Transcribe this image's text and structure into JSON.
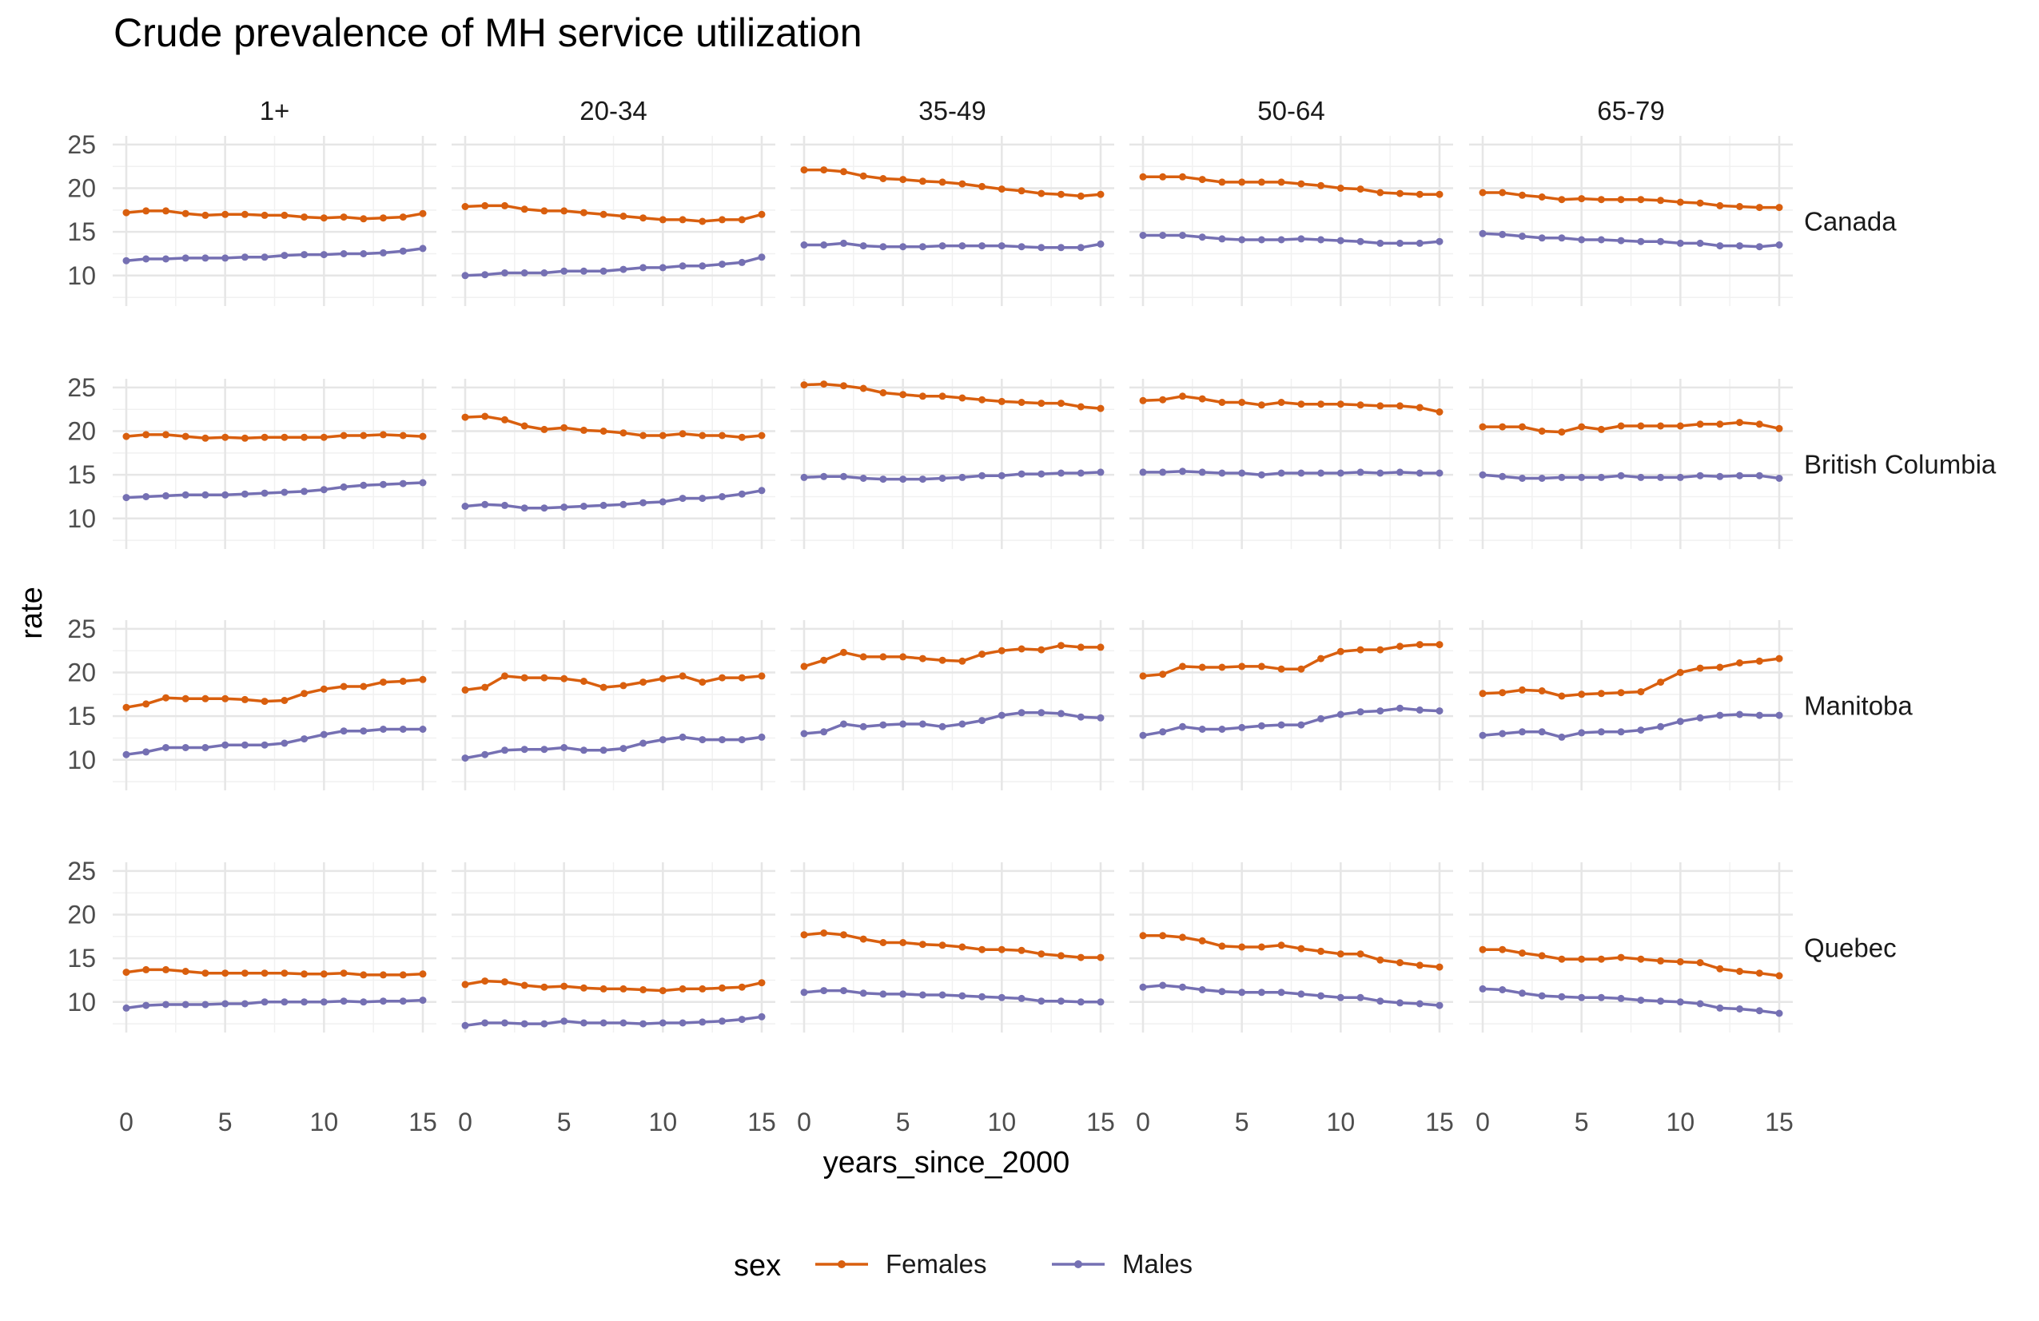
{
  "chart_data": {
    "type": "line",
    "title": "Crude prevalence of MH service utilization",
    "xlabel": "years_since_2000",
    "ylabel": "rate",
    "xlim": [
      0,
      15
    ],
    "ylim": [
      6.5,
      26
    ],
    "x_ticks": [
      "0",
      "5",
      "10",
      "15"
    ],
    "y_ticks": [
      "10",
      "15",
      "20",
      "25"
    ],
    "grid": true,
    "legend": {
      "title": "sex",
      "position": "bottom",
      "entries": [
        "Females",
        "Males"
      ]
    },
    "x": [
      0,
      1,
      2,
      3,
      4,
      5,
      6,
      7,
      8,
      9,
      10,
      11,
      12,
      13,
      14,
      15
    ],
    "colors": {
      "Females": "#d95f0e",
      "Males": "#7570b3"
    },
    "columns": [
      "1+",
      "20-34",
      "35-49",
      "50-64",
      "65-79"
    ],
    "rows": [
      "Canada",
      "British Columbia",
      "Manitoba",
      "Quebec"
    ],
    "panels": [
      {
        "row": "Canada",
        "col": "1+",
        "series": [
          {
            "name": "Females",
            "values": [
              17.2,
              17.4,
              17.4,
              17.1,
              16.9,
              17.0,
              17.0,
              16.9,
              16.9,
              16.7,
              16.6,
              16.7,
              16.5,
              16.6,
              16.7,
              17.1
            ]
          },
          {
            "name": "Males",
            "values": [
              11.7,
              11.9,
              11.9,
              12.0,
              12.0,
              12.0,
              12.1,
              12.1,
              12.3,
              12.4,
              12.4,
              12.5,
              12.5,
              12.6,
              12.8,
              13.1
            ]
          }
        ]
      },
      {
        "row": "Canada",
        "col": "20-34",
        "series": [
          {
            "name": "Females",
            "values": [
              17.9,
              18.0,
              18.0,
              17.6,
              17.4,
              17.4,
              17.2,
              17.0,
              16.8,
              16.6,
              16.4,
              16.4,
              16.2,
              16.4,
              16.4,
              17.0
            ]
          },
          {
            "name": "Males",
            "values": [
              10.0,
              10.1,
              10.3,
              10.3,
              10.3,
              10.5,
              10.5,
              10.5,
              10.7,
              10.9,
              10.9,
              11.1,
              11.1,
              11.3,
              11.5,
              12.1
            ]
          }
        ]
      },
      {
        "row": "Canada",
        "col": "35-49",
        "series": [
          {
            "name": "Females",
            "values": [
              22.1,
              22.1,
              21.9,
              21.4,
              21.1,
              21.0,
              20.8,
              20.7,
              20.5,
              20.2,
              19.9,
              19.7,
              19.4,
              19.3,
              19.1,
              19.3
            ]
          },
          {
            "name": "Males",
            "values": [
              13.5,
              13.5,
              13.7,
              13.4,
              13.3,
              13.3,
              13.3,
              13.4,
              13.4,
              13.4,
              13.4,
              13.3,
              13.2,
              13.2,
              13.2,
              13.6
            ]
          }
        ]
      },
      {
        "row": "Canada",
        "col": "50-64",
        "series": [
          {
            "name": "Females",
            "values": [
              21.3,
              21.3,
              21.3,
              21.0,
              20.7,
              20.7,
              20.7,
              20.7,
              20.5,
              20.3,
              20.0,
              19.9,
              19.5,
              19.4,
              19.3,
              19.3
            ]
          },
          {
            "name": "Males",
            "values": [
              14.6,
              14.6,
              14.6,
              14.4,
              14.2,
              14.1,
              14.1,
              14.1,
              14.2,
              14.1,
              14.0,
              13.9,
              13.7,
              13.7,
              13.7,
              13.9
            ]
          }
        ]
      },
      {
        "row": "Canada",
        "col": "65-79",
        "series": [
          {
            "name": "Females",
            "values": [
              19.5,
              19.5,
              19.2,
              19.0,
              18.7,
              18.8,
              18.7,
              18.7,
              18.7,
              18.6,
              18.4,
              18.3,
              18.0,
              17.9,
              17.8,
              17.8
            ]
          },
          {
            "name": "Males",
            "values": [
              14.8,
              14.7,
              14.5,
              14.3,
              14.3,
              14.1,
              14.1,
              14.0,
              13.9,
              13.9,
              13.7,
              13.7,
              13.4,
              13.4,
              13.3,
              13.5
            ]
          }
        ]
      },
      {
        "row": "British Columbia",
        "col": "1+",
        "series": [
          {
            "name": "Females",
            "values": [
              19.4,
              19.6,
              19.6,
              19.4,
              19.2,
              19.3,
              19.2,
              19.3,
              19.3,
              19.3,
              19.3,
              19.5,
              19.5,
              19.6,
              19.5,
              19.4
            ]
          },
          {
            "name": "Males",
            "values": [
              12.4,
              12.5,
              12.6,
              12.7,
              12.7,
              12.7,
              12.8,
              12.9,
              13.0,
              13.1,
              13.3,
              13.6,
              13.8,
              13.9,
              14.0,
              14.1
            ]
          }
        ]
      },
      {
        "row": "British Columbia",
        "col": "20-34",
        "series": [
          {
            "name": "Females",
            "values": [
              21.6,
              21.7,
              21.3,
              20.6,
              20.2,
              20.4,
              20.1,
              20.0,
              19.8,
              19.5,
              19.5,
              19.7,
              19.5,
              19.5,
              19.3,
              19.5
            ]
          },
          {
            "name": "Males",
            "values": [
              11.4,
              11.6,
              11.5,
              11.2,
              11.2,
              11.3,
              11.4,
              11.5,
              11.6,
              11.8,
              11.9,
              12.3,
              12.3,
              12.5,
              12.8,
              13.2
            ]
          }
        ]
      },
      {
        "row": "British Columbia",
        "col": "35-49",
        "series": [
          {
            "name": "Females",
            "values": [
              25.3,
              25.4,
              25.2,
              24.9,
              24.4,
              24.2,
              24.0,
              24.0,
              23.8,
              23.6,
              23.4,
              23.3,
              23.2,
              23.2,
              22.8,
              22.6
            ]
          },
          {
            "name": "Males",
            "values": [
              14.7,
              14.8,
              14.8,
              14.6,
              14.5,
              14.5,
              14.5,
              14.6,
              14.7,
              14.9,
              14.9,
              15.1,
              15.1,
              15.2,
              15.2,
              15.3
            ]
          }
        ]
      },
      {
        "row": "British Columbia",
        "col": "50-64",
        "series": [
          {
            "name": "Females",
            "values": [
              23.5,
              23.6,
              24.0,
              23.7,
              23.3,
              23.3,
              23.0,
              23.3,
              23.1,
              23.1,
              23.1,
              23.0,
              22.9,
              22.9,
              22.7,
              22.2
            ]
          },
          {
            "name": "Males",
            "values": [
              15.3,
              15.3,
              15.4,
              15.3,
              15.2,
              15.2,
              15.0,
              15.2,
              15.2,
              15.2,
              15.2,
              15.3,
              15.2,
              15.3,
              15.2,
              15.2
            ]
          }
        ]
      },
      {
        "row": "British Columbia",
        "col": "65-79",
        "series": [
          {
            "name": "Females",
            "values": [
              20.5,
              20.5,
              20.5,
              20.0,
              19.9,
              20.5,
              20.2,
              20.6,
              20.6,
              20.6,
              20.6,
              20.8,
              20.8,
              21.0,
              20.8,
              20.3
            ]
          },
          {
            "name": "Males",
            "values": [
              15.0,
              14.8,
              14.6,
              14.6,
              14.7,
              14.7,
              14.7,
              14.9,
              14.7,
              14.7,
              14.7,
              14.9,
              14.8,
              14.9,
              14.9,
              14.6
            ]
          }
        ]
      },
      {
        "row": "Manitoba",
        "col": "1+",
        "series": [
          {
            "name": "Females",
            "values": [
              16.0,
              16.4,
              17.1,
              17.0,
              17.0,
              17.0,
              16.9,
              16.7,
              16.8,
              17.6,
              18.1,
              18.4,
              18.4,
              18.9,
              19.0,
              19.2
            ]
          },
          {
            "name": "Males",
            "values": [
              10.6,
              10.9,
              11.4,
              11.4,
              11.4,
              11.7,
              11.7,
              11.7,
              11.9,
              12.4,
              12.9,
              13.3,
              13.3,
              13.5,
              13.5,
              13.5
            ]
          }
        ]
      },
      {
        "row": "Manitoba",
        "col": "20-34",
        "series": [
          {
            "name": "Females",
            "values": [
              18.0,
              18.3,
              19.6,
              19.4,
              19.4,
              19.3,
              19.0,
              18.3,
              18.5,
              18.9,
              19.3,
              19.6,
              18.9,
              19.4,
              19.4,
              19.6
            ]
          },
          {
            "name": "Males",
            "values": [
              10.2,
              10.6,
              11.1,
              11.2,
              11.2,
              11.4,
              11.1,
              11.1,
              11.3,
              11.9,
              12.3,
              12.6,
              12.3,
              12.3,
              12.3,
              12.6
            ]
          }
        ]
      },
      {
        "row": "Manitoba",
        "col": "35-49",
        "series": [
          {
            "name": "Females",
            "values": [
              20.7,
              21.4,
              22.3,
              21.8,
              21.8,
              21.8,
              21.6,
              21.4,
              21.3,
              22.1,
              22.5,
              22.7,
              22.6,
              23.1,
              22.9,
              22.9
            ]
          },
          {
            "name": "Males",
            "values": [
              13.0,
              13.2,
              14.1,
              13.8,
              14.0,
              14.1,
              14.1,
              13.8,
              14.1,
              14.5,
              15.1,
              15.4,
              15.4,
              15.3,
              14.9,
              14.8
            ]
          }
        ]
      },
      {
        "row": "Manitoba",
        "col": "50-64",
        "series": [
          {
            "name": "Females",
            "values": [
              19.6,
              19.8,
              20.7,
              20.6,
              20.6,
              20.7,
              20.7,
              20.4,
              20.4,
              21.6,
              22.4,
              22.6,
              22.6,
              23.0,
              23.2,
              23.2
            ]
          },
          {
            "name": "Males",
            "values": [
              12.8,
              13.2,
              13.8,
              13.5,
              13.5,
              13.7,
              13.9,
              14.0,
              14.0,
              14.7,
              15.2,
              15.5,
              15.6,
              15.9,
              15.7,
              15.6
            ]
          }
        ]
      },
      {
        "row": "Manitoba",
        "col": "65-79",
        "series": [
          {
            "name": "Females",
            "values": [
              17.6,
              17.7,
              18.0,
              17.9,
              17.3,
              17.5,
              17.6,
              17.7,
              17.8,
              18.9,
              20.0,
              20.5,
              20.6,
              21.1,
              21.3,
              21.6
            ]
          },
          {
            "name": "Males",
            "values": [
              12.8,
              13.0,
              13.2,
              13.2,
              12.6,
              13.1,
              13.2,
              13.2,
              13.4,
              13.8,
              14.4,
              14.8,
              15.1,
              15.2,
              15.1,
              15.1
            ]
          }
        ]
      },
      {
        "row": "Quebec",
        "col": "1+",
        "series": [
          {
            "name": "Females",
            "values": [
              13.4,
              13.7,
              13.7,
              13.5,
              13.3,
              13.3,
              13.3,
              13.3,
              13.3,
              13.2,
              13.2,
              13.3,
              13.1,
              13.1,
              13.1,
              13.2
            ]
          },
          {
            "name": "Males",
            "values": [
              9.3,
              9.6,
              9.7,
              9.7,
              9.7,
              9.8,
              9.8,
              10.0,
              10.0,
              10.0,
              10.0,
              10.1,
              10.0,
              10.1,
              10.1,
              10.2
            ]
          }
        ]
      },
      {
        "row": "Quebec",
        "col": "20-34",
        "series": [
          {
            "name": "Females",
            "values": [
              12.0,
              12.4,
              12.3,
              11.9,
              11.7,
              11.8,
              11.6,
              11.5,
              11.5,
              11.4,
              11.3,
              11.5,
              11.5,
              11.6,
              11.7,
              12.2
            ]
          },
          {
            "name": "Males",
            "values": [
              7.3,
              7.6,
              7.6,
              7.5,
              7.5,
              7.8,
              7.6,
              7.6,
              7.6,
              7.5,
              7.6,
              7.6,
              7.7,
              7.8,
              8.0,
              8.3
            ]
          }
        ]
      },
      {
        "row": "Quebec",
        "col": "35-49",
        "series": [
          {
            "name": "Females",
            "values": [
              17.7,
              17.9,
              17.7,
              17.2,
              16.8,
              16.8,
              16.6,
              16.5,
              16.3,
              16.0,
              16.0,
              15.9,
              15.5,
              15.3,
              15.1,
              15.1
            ]
          },
          {
            "name": "Males",
            "values": [
              11.1,
              11.3,
              11.3,
              11.0,
              10.9,
              10.9,
              10.8,
              10.8,
              10.7,
              10.6,
              10.5,
              10.4,
              10.1,
              10.1,
              10.0,
              10.0
            ]
          }
        ]
      },
      {
        "row": "Quebec",
        "col": "50-64",
        "series": [
          {
            "name": "Females",
            "values": [
              17.6,
              17.6,
              17.4,
              17.0,
              16.4,
              16.3,
              16.3,
              16.5,
              16.1,
              15.8,
              15.5,
              15.5,
              14.8,
              14.5,
              14.2,
              14.0
            ]
          },
          {
            "name": "Males",
            "values": [
              11.7,
              11.9,
              11.7,
              11.4,
              11.2,
              11.1,
              11.1,
              11.1,
              10.9,
              10.7,
              10.5,
              10.5,
              10.1,
              9.9,
              9.8,
              9.6
            ]
          }
        ]
      },
      {
        "row": "Quebec",
        "col": "65-79",
        "series": [
          {
            "name": "Females",
            "values": [
              16.0,
              16.0,
              15.6,
              15.3,
              14.9,
              14.9,
              14.9,
              15.1,
              14.9,
              14.7,
              14.6,
              14.5,
              13.8,
              13.5,
              13.3,
              13.0
            ]
          },
          {
            "name": "Males",
            "values": [
              11.5,
              11.4,
              11.0,
              10.7,
              10.6,
              10.5,
              10.5,
              10.4,
              10.2,
              10.1,
              10.0,
              9.8,
              9.3,
              9.2,
              9.0,
              8.7
            ]
          }
        ]
      }
    ]
  }
}
